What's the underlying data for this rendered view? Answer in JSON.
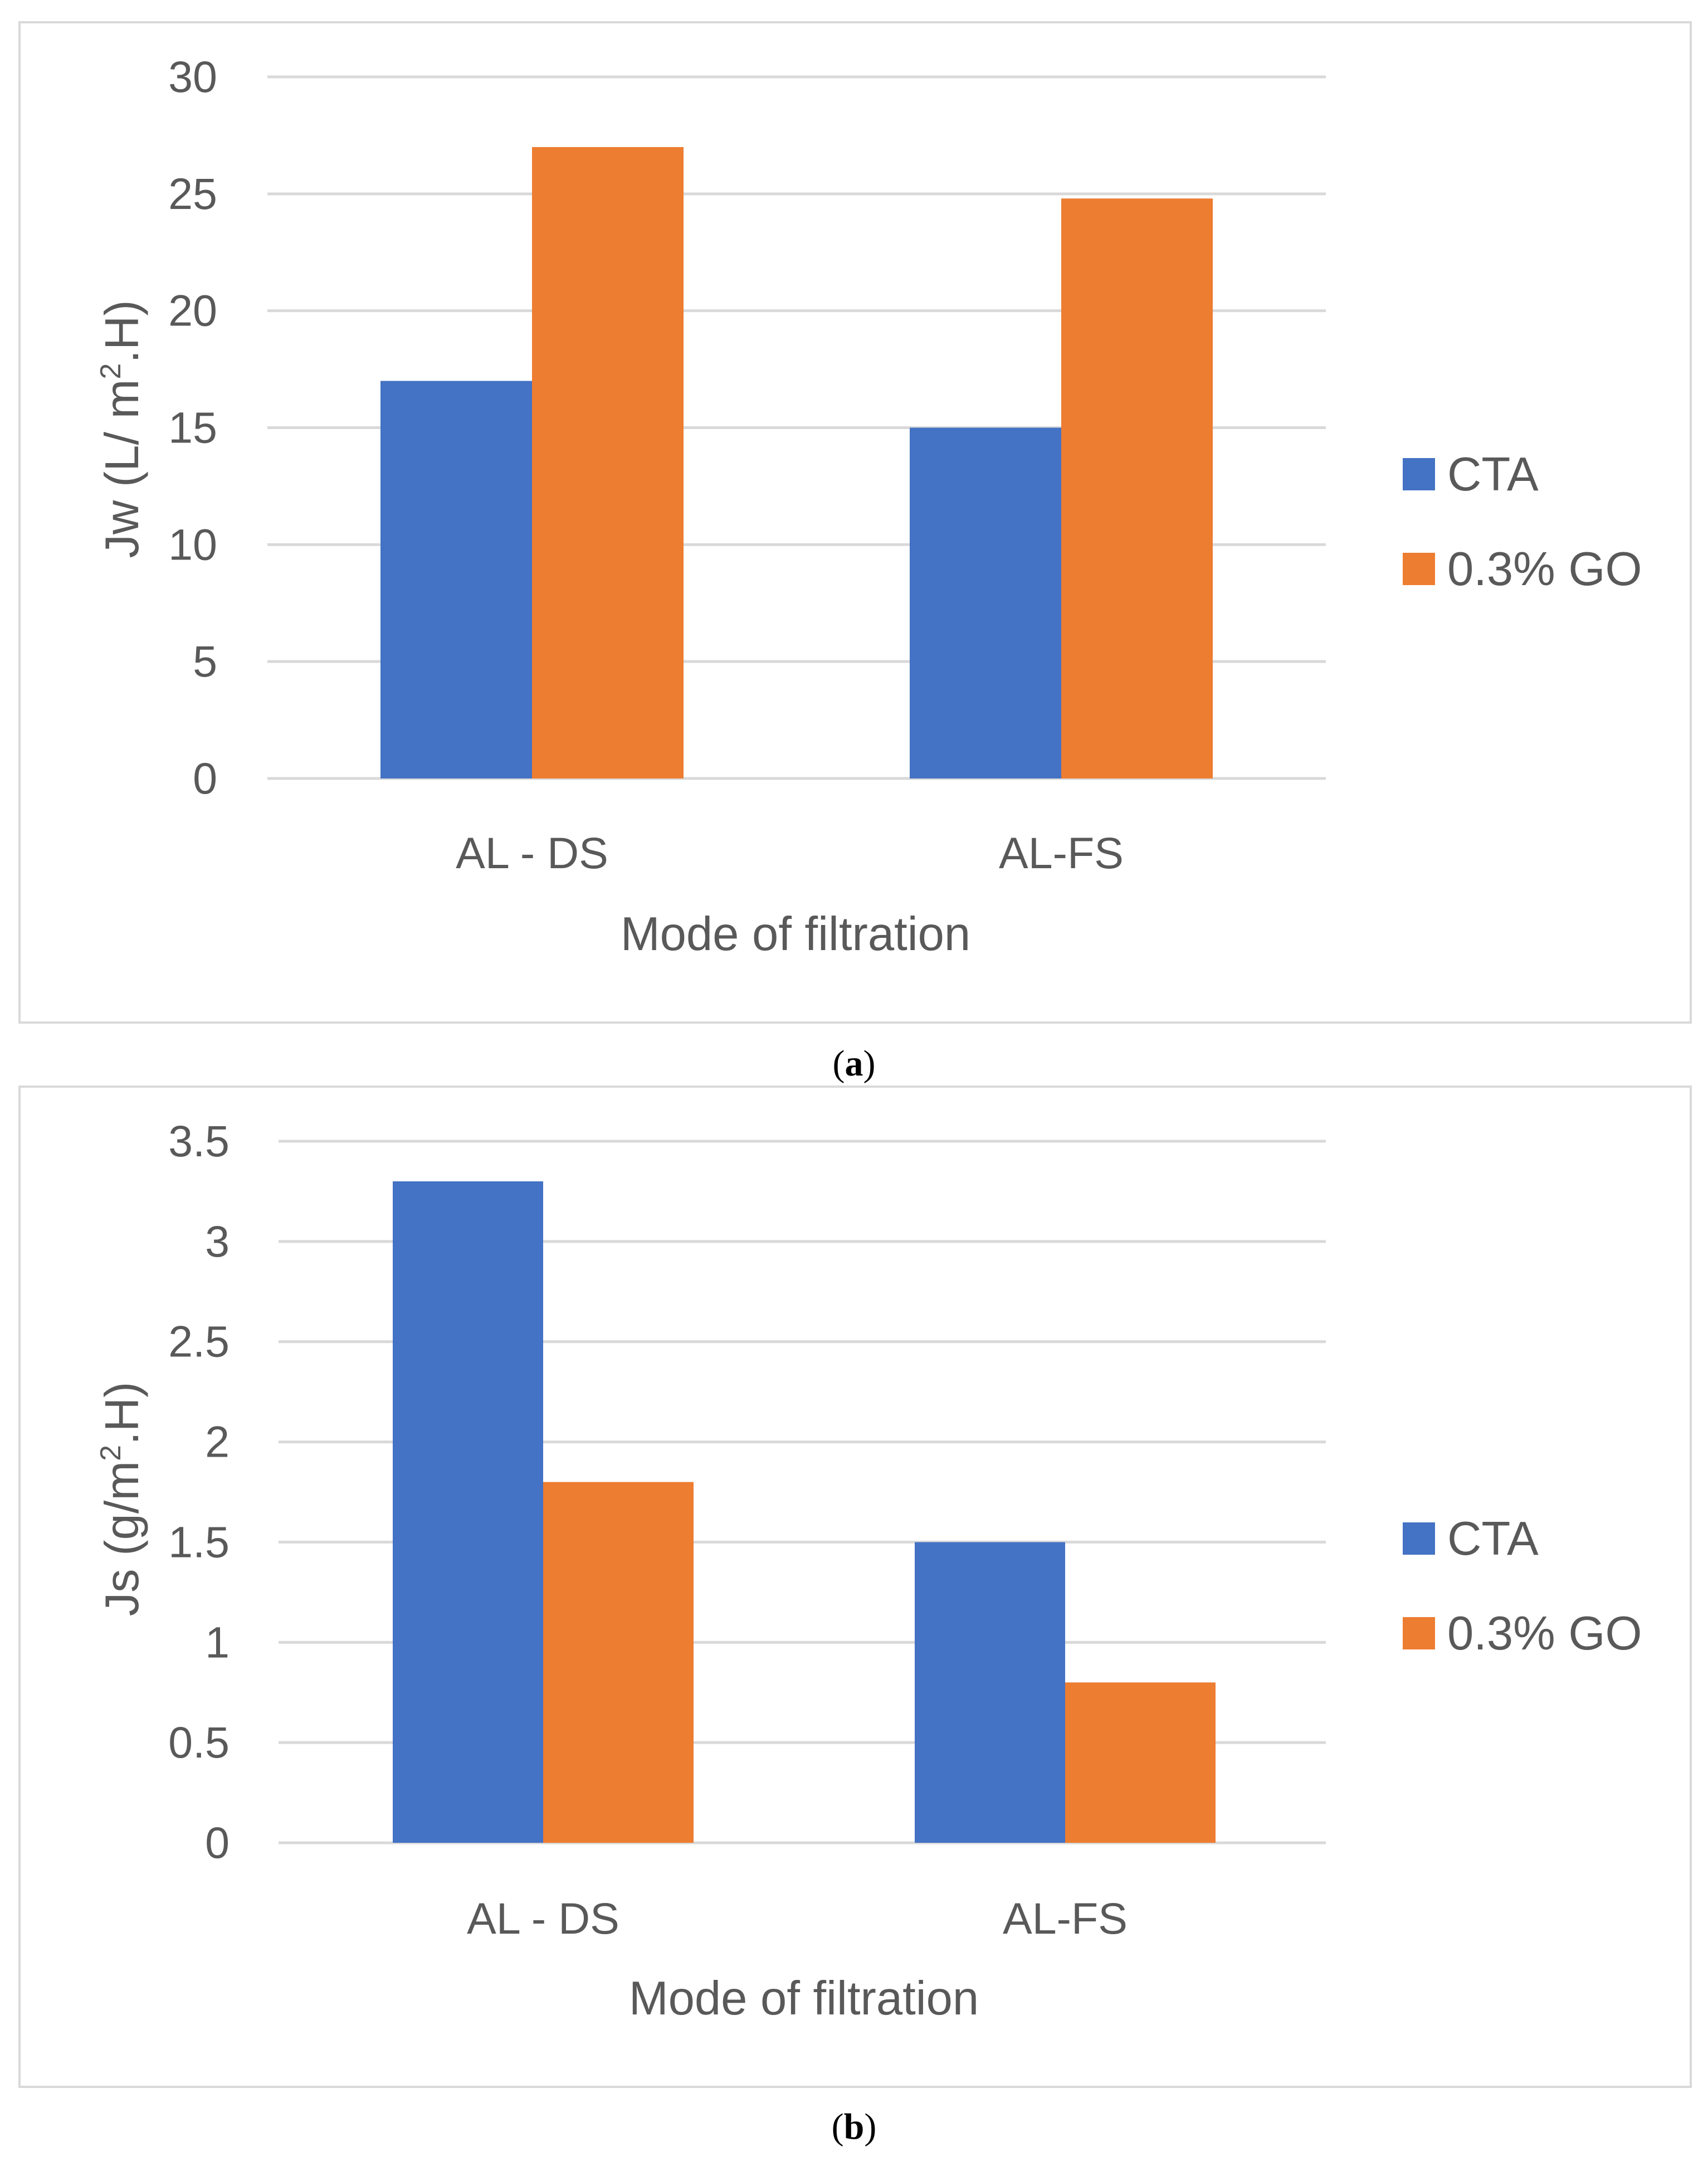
{
  "chart_data": [
    {
      "type": "bar",
      "caption_open": "(",
      "caption_letter": "a",
      "caption_close": ")",
      "xlabel": "Mode of filtration",
      "ylabel_main": "Jw (L/ m",
      "ylabel_sup": "2",
      "ylabel_tail": ".H)",
      "categories": [
        "AL - DS",
        "AL-FS"
      ],
      "series": [
        {
          "name": "CTA",
          "values": [
            17,
            15
          ]
        },
        {
          "name": "0.3% GO",
          "values": [
            27,
            24.8
          ]
        }
      ],
      "ylim": [
        0,
        30
      ],
      "yticks": [
        0,
        5,
        10,
        15,
        20,
        25,
        30
      ],
      "ytick_labels": [
        "0",
        "5",
        "10",
        "15",
        "20",
        "25",
        "30"
      ],
      "grid": true,
      "legend": "right"
    },
    {
      "type": "bar",
      "caption_open": "(",
      "caption_letter": "b",
      "caption_close": ")",
      "xlabel": "Mode of filtration",
      "ylabel_main": "Js (g/m",
      "ylabel_sup": "2",
      "ylabel_tail": ".H)",
      "categories": [
        "AL - DS",
        "AL-FS"
      ],
      "series": [
        {
          "name": "CTA",
          "values": [
            3.3,
            1.5
          ]
        },
        {
          "name": "0.3% GO",
          "values": [
            1.8,
            0.8
          ]
        }
      ],
      "ylim": [
        0,
        3.5
      ],
      "yticks": [
        0,
        0.5,
        1,
        1.5,
        2,
        2.5,
        3,
        3.5
      ],
      "ytick_labels": [
        "0",
        "0.5",
        "1",
        "1.5",
        "2",
        "2.5",
        "3",
        "3.5"
      ],
      "grid": true,
      "legend": "right"
    }
  ],
  "colors": {
    "series": [
      "#4472c4",
      "#ed7d31"
    ],
    "grid": "#d9d9d9",
    "border": "#d9d9d9",
    "text": "#595959"
  }
}
